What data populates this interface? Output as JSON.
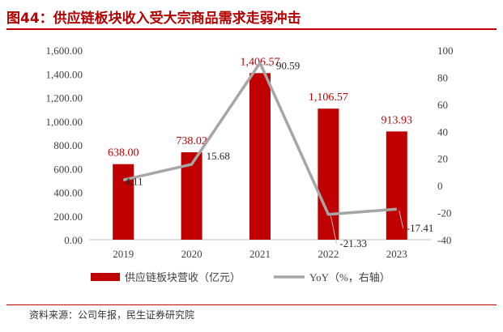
{
  "figure": {
    "title": "图44：供应链板块收入受大宗商品需求走弱冲击",
    "source": "资料来源：公司年报，民生证券研究院"
  },
  "colors": {
    "bar": "#c00000",
    "line": "#a6a6a6",
    "accent": "#c00000",
    "axis": "#bfbfbf"
  },
  "chart_data": {
    "type": "bar+line",
    "categories": [
      "2019",
      "2020",
      "2021",
      "2022",
      "2023"
    ],
    "series": [
      {
        "name": "供应链板块营收（亿元）",
        "type": "bar",
        "axis": "left",
        "values": [
          638.0,
          738.02,
          1406.57,
          1106.57,
          913.93
        ],
        "labels": [
          "638.00",
          "738.02",
          "1,406.57",
          "1,106.57",
          "913.93"
        ]
      },
      {
        "name": "YoY（%，右轴）",
        "type": "line",
        "axis": "right",
        "values": [
          4.11,
          15.68,
          90.59,
          -21.33,
          -17.41
        ],
        "labels": [
          "4.11",
          "15.68",
          "90.59",
          "-21.33",
          "-17.41"
        ]
      }
    ],
    "y_left": {
      "min": 0,
      "max": 1600,
      "ticks": [
        "0.00",
        "200.00",
        "400.00",
        "600.00",
        "800.00",
        "1,000.00",
        "1,200.00",
        "1,400.00",
        "1,600.00"
      ]
    },
    "y_right": {
      "min": -40,
      "max": 100,
      "ticks": [
        "-40",
        "-20",
        "0",
        "20",
        "40",
        "60",
        "80",
        "100"
      ]
    },
    "legend": {
      "position": "bottom",
      "bar_label": "供应链板块营收（亿元）",
      "line_label": "YoY（%，右轴）"
    }
  }
}
